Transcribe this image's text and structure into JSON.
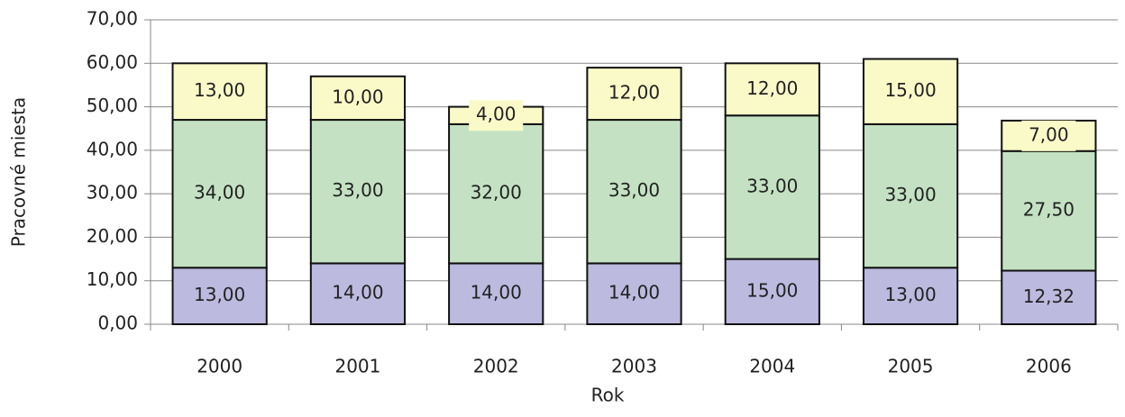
{
  "chart_data": {
    "type": "stacked_bar",
    "categories": [
      "2000",
      "2001",
      "2002",
      "2003",
      "2004",
      "2005",
      "2006"
    ],
    "series": [
      {
        "color": "#bcbadf",
        "values": [
          13,
          14,
          14,
          14,
          15,
          13,
          12.32
        ],
        "value_labels": [
          "13,00",
          "14,00",
          "14,00",
          "14,00",
          "15,00",
          "13,00",
          "12,32"
        ]
      },
      {
        "color": "#c4e2c3",
        "values": [
          34,
          33,
          32,
          33,
          33,
          33,
          27.5
        ],
        "value_labels": [
          "34,00",
          "33,00",
          "32,00",
          "33,00",
          "33,00",
          "33,00",
          "27,50"
        ]
      },
      {
        "color": "#fafac9",
        "values": [
          13,
          10,
          4,
          12,
          12,
          15,
          7
        ],
        "value_labels": [
          "13,00",
          "10,00",
          "4,00",
          "12,00",
          "12,00",
          "15,00",
          "7,00"
        ]
      }
    ],
    "xlabel": "Rok",
    "ylabel": "Pracovné miesta",
    "ylim": [
      0,
      70
    ],
    "yticks": [
      {
        "value": 0,
        "label": "0,00"
      },
      {
        "value": 10,
        "label": "10,00"
      },
      {
        "value": 20,
        "label": "20,00"
      },
      {
        "value": 30,
        "label": "30,00"
      },
      {
        "value": 40,
        "label": "40,00"
      },
      {
        "value": 50,
        "label": "50,00"
      },
      {
        "value": 60,
        "label": "60,00"
      },
      {
        "value": 70,
        "label": "70,00"
      }
    ],
    "grid": true
  }
}
